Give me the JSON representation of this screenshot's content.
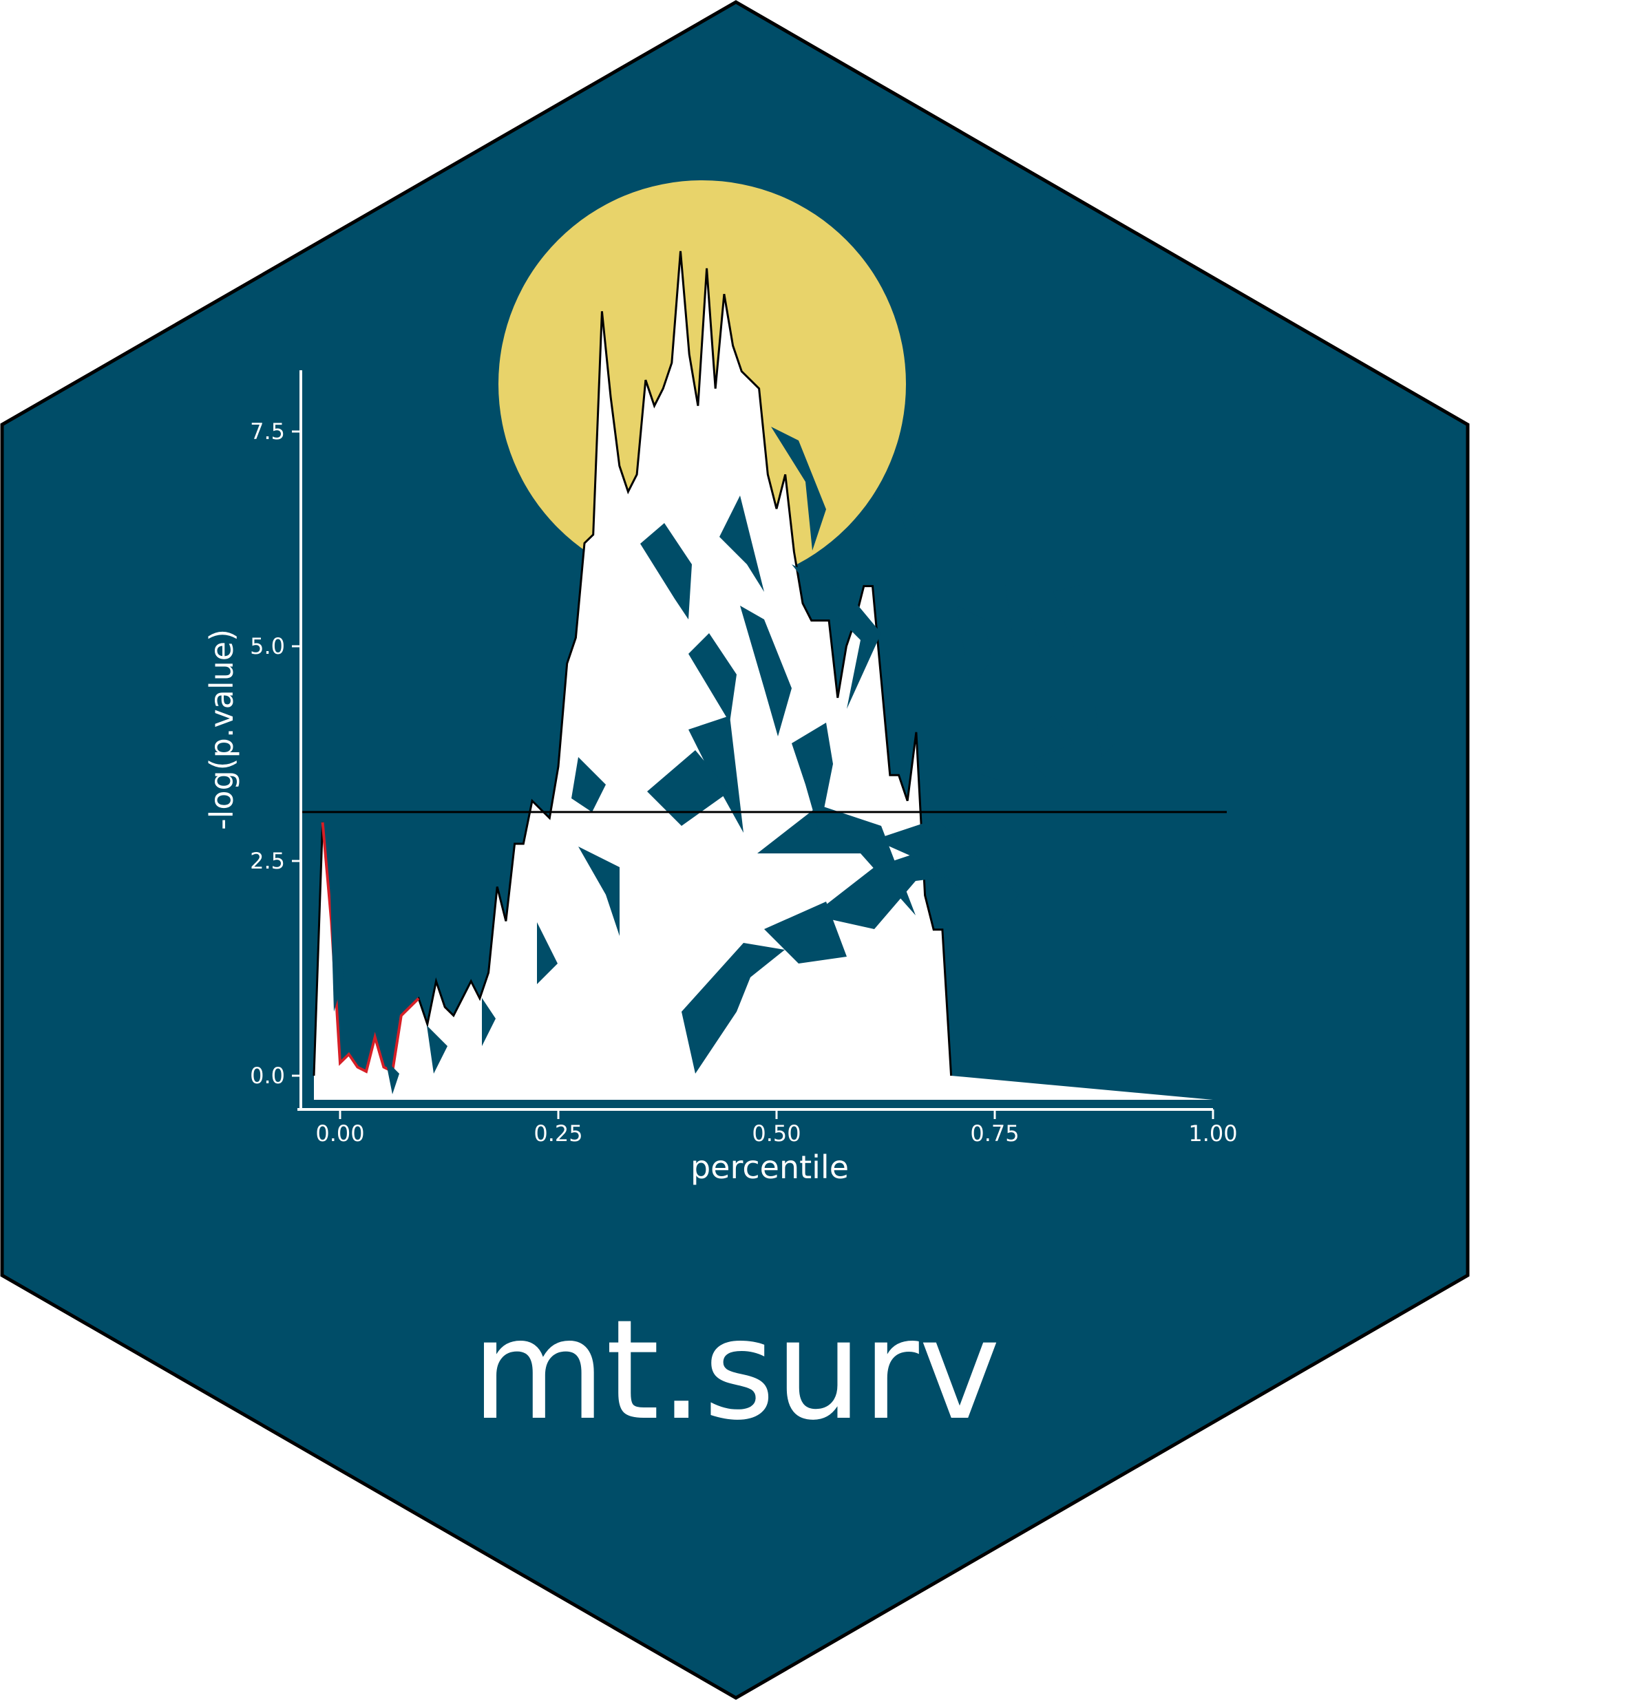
{
  "package_name": "mt.surv",
  "colors": {
    "hex_fill": "#004d68",
    "hex_border": "#000000",
    "moon": "#e8d36a",
    "mountain": "#ffffff",
    "curve_line": "#000000",
    "red_segment": "#d61f26",
    "text": "#ffffff"
  },
  "chart_data": {
    "type": "area",
    "xlabel": "percentile",
    "ylabel": "-log(p.value)",
    "xlim": [
      -0.05,
      1.0
    ],
    "ylim": [
      -0.4,
      8.2
    ],
    "x_ticks": [
      0.0,
      0.25,
      0.5,
      0.75,
      1.0
    ],
    "x_tick_labels": [
      "0.00",
      "0.25",
      "0.50",
      "0.75",
      "1.00"
    ],
    "y_ticks": [
      0.0,
      2.5,
      5.0,
      7.5
    ],
    "y_tick_labels": [
      "0.0",
      "2.5",
      "5.0",
      "7.5"
    ],
    "threshold": 3.07,
    "grid": false,
    "series": [
      {
        "x": [
          -0.03,
          -0.02,
          -0.01,
          0.0,
          0.01,
          0.02,
          0.03,
          0.04,
          0.05,
          0.06,
          0.07,
          0.08,
          0.09,
          0.1,
          0.11,
          0.12,
          0.13,
          0.14,
          0.15,
          0.16,
          0.17,
          0.18,
          0.19,
          0.2,
          0.21,
          0.22,
          0.23,
          0.24,
          0.25,
          0.26,
          0.27,
          0.28,
          0.29,
          0.3,
          0.31,
          0.32,
          0.33,
          0.34,
          0.35,
          0.36,
          0.37,
          0.38,
          0.39,
          0.4,
          0.41,
          0.42,
          0.43,
          0.44,
          0.45,
          0.46,
          0.47,
          0.48,
          0.49,
          0.5,
          0.51,
          0.52,
          0.53,
          0.54,
          0.55,
          0.56,
          0.57,
          0.58,
          0.59,
          0.6,
          0.61,
          0.62,
          0.63,
          0.64,
          0.65,
          0.66,
          0.67,
          0.68,
          0.69,
          0.7,
          0.71,
          0.72,
          0.73,
          0.74,
          0.75,
          0.76,
          0.77,
          0.78,
          0.79,
          0.8,
          0.81,
          0.82,
          0.83,
          0.84,
          0.85,
          0.86,
          0.87,
          0.88,
          0.89,
          0.9,
          0.91,
          0.92,
          0.93,
          0.94,
          0.95,
          0.96,
          0.97,
          0.98
        ],
        "y": [
          0.0,
          2.95,
          1.8,
          0.15,
          0.25,
          0.1,
          0.05,
          0.45,
          0.1,
          0.05,
          0.7,
          0.8,
          0.9,
          0.6,
          1.1,
          0.8,
          0.7,
          0.9,
          1.1,
          0.9,
          1.2,
          2.2,
          1.8,
          2.7,
          2.7,
          3.2,
          3.1,
          3.0,
          3.6,
          4.8,
          5.1,
          6.2,
          6.3,
          8.9,
          7.9,
          7.1,
          6.8,
          7.0,
          8.1,
          7.8,
          8.0,
          8.3,
          9.6,
          8.4,
          7.8,
          9.4,
          8.0,
          9.1,
          8.5,
          8.2,
          8.1,
          8.0,
          7.0,
          6.6,
          7.0,
          6.1,
          5.5,
          5.3,
          5.3,
          5.3,
          4.4,
          5.0,
          5.3,
          5.7,
          5.7,
          4.6,
          3.5,
          3.5,
          3.2,
          4.0,
          2.1,
          1.7,
          1.7,
          0.0,
          0.0,
          0.0,
          0.0,
          0.0,
          0.0,
          0.0,
          0.0,
          0.0,
          0.0,
          0.0,
          0.0,
          0.0,
          0.0,
          0.0,
          0.0,
          0.0,
          0.0,
          0.0,
          0.0,
          0.0,
          0.0,
          0.0,
          0.0,
          0.0,
          0.0,
          0.0,
          0.0,
          0.0
        ]
      }
    ]
  }
}
